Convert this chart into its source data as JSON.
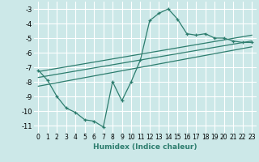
{
  "xlabel": "Humidex (Indice chaleur)",
  "background_color": "#cce8e8",
  "line_color": "#2d7d6e",
  "grid_color": "#ffffff",
  "xlim": [
    -0.5,
    23.5
  ],
  "ylim": [
    -11.5,
    -2.5
  ],
  "yticks": [
    -11,
    -10,
    -9,
    -8,
    -7,
    -6,
    -5,
    -4,
    -3
  ],
  "xticks": [
    0,
    1,
    2,
    3,
    4,
    5,
    6,
    7,
    8,
    9,
    10,
    11,
    12,
    13,
    14,
    15,
    16,
    17,
    18,
    19,
    20,
    21,
    22,
    23
  ],
  "main_series_x": [
    0,
    1,
    2,
    3,
    4,
    5,
    6,
    7,
    8,
    9,
    10,
    11,
    12,
    13,
    14,
    15,
    16,
    17,
    18,
    19,
    20,
    21,
    22,
    23
  ],
  "main_series_y": [
    -7.2,
    -7.9,
    -9.0,
    -9.8,
    -10.1,
    -10.6,
    -10.7,
    -11.1,
    -8.0,
    -9.3,
    -8.0,
    -6.5,
    -3.8,
    -3.3,
    -3.0,
    -3.7,
    -4.7,
    -4.8,
    -4.7,
    -5.0,
    -5.0,
    -5.2,
    -5.3,
    -5.3
  ],
  "trend1_x": [
    0,
    23
  ],
  "trend1_y": [
    -7.3,
    -4.8
  ],
  "trend2_x": [
    0,
    23
  ],
  "trend2_y": [
    -7.7,
    -5.2
  ],
  "trend3_x": [
    0,
    23
  ],
  "trend3_y": [
    -8.3,
    -5.6
  ]
}
